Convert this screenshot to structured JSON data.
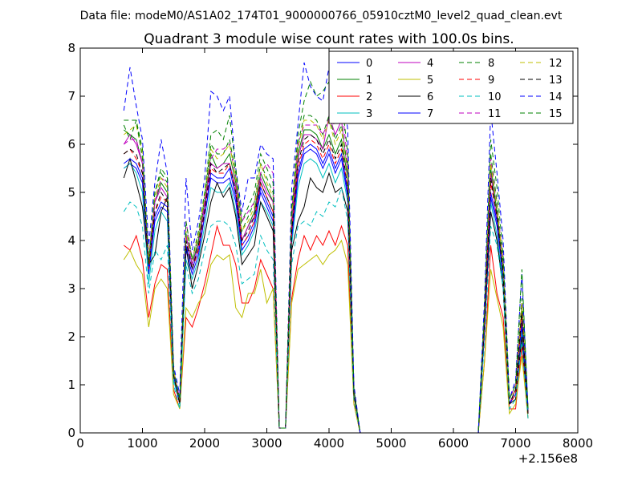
{
  "figure": {
    "suptitle": "Data file: modeM0/AS1A02_174T01_9000000766_05910cztM0_level2_quad_clean.evt"
  },
  "chart_data": {
    "type": "line",
    "title": "Quadrant 3 module wise count rates with 100.0s bins.",
    "xlabel": "",
    "ylabel": "",
    "xlim": [
      0,
      8000
    ],
    "ylim": [
      0,
      8
    ],
    "xticks": [
      0,
      1000,
      2000,
      3000,
      4000,
      5000,
      6000,
      7000,
      8000
    ],
    "xtick_labels": [
      "0",
      "1000",
      "2000",
      "3000",
      "4000",
      "5000",
      "6000",
      "7000",
      "8000"
    ],
    "yticks": [
      0,
      1,
      2,
      3,
      4,
      5,
      6,
      7,
      8
    ],
    "ytick_labels": [
      "0",
      "1",
      "2",
      "3",
      "4",
      "5",
      "6",
      "7",
      "8"
    ],
    "x_offset_label": "+2.156e8",
    "grid": false,
    "legend": {
      "placement": "top-right",
      "columns": 4
    },
    "x": [
      700,
      800,
      900,
      1000,
      1100,
      1200,
      1300,
      1400,
      1500,
      1600,
      1700,
      1800,
      1900,
      2000,
      2100,
      2200,
      2300,
      2400,
      2500,
      2600,
      2700,
      2800,
      2900,
      3000,
      3100,
      3200,
      3300,
      3400,
      3500,
      3600,
      3700,
      3800,
      3900,
      4000,
      4100,
      4200,
      4300,
      4400,
      4500,
      4600,
      4700,
      4800,
      4900,
      5000,
      5100,
      5200,
      5300,
      5400,
      5500,
      5600,
      5700,
      5800,
      5900,
      6000,
      6100,
      6200,
      6300,
      6400,
      6500,
      6600,
      6700,
      6800,
      6900,
      7000,
      7100,
      7200
    ],
    "series": [
      {
        "name": "0",
        "color": "#0000ff",
        "dash": "solid",
        "values": [
          5.5,
          5.6,
          5.5,
          5.2,
          3.3,
          4.4,
          4.7,
          4.6,
          1.2,
          0.6,
          3.8,
          3.3,
          3.7,
          4.5,
          5.3,
          5.2,
          5.2,
          5.3,
          4.8,
          3.8,
          4.0,
          4.3,
          5.0,
          4.7,
          4.4,
          0.1,
          0.1,
          4.0,
          5.3,
          5.8,
          5.9,
          5.8,
          5.5,
          5.8,
          5.4,
          5.7,
          4.9,
          0.8,
          0.0,
          0,
          0,
          0,
          0,
          0,
          0,
          0,
          0,
          0,
          0,
          0,
          0,
          0,
          0,
          0,
          0,
          0,
          0,
          0,
          2.2,
          4.9,
          4.3,
          3.2,
          0.6,
          0.8,
          2.2,
          0.4
        ]
      },
      {
        "name": "1",
        "color": "#008000",
        "dash": "solid",
        "values": [
          6.3,
          6.2,
          6.1,
          5.6,
          3.4,
          4.8,
          5.2,
          5.0,
          1.3,
          0.6,
          4.1,
          3.5,
          4.0,
          4.8,
          5.8,
          5.5,
          5.6,
          5.8,
          5.2,
          4.0,
          4.3,
          4.6,
          5.4,
          5.1,
          4.8,
          0.1,
          0.1,
          4.4,
          5.8,
          6.3,
          6.3,
          6.2,
          5.9,
          6.2,
          5.8,
          6.1,
          5.3,
          0.9,
          0.0,
          0,
          0,
          0,
          0,
          0,
          0,
          0,
          0,
          0,
          0,
          0,
          0,
          0,
          0,
          0,
          0,
          0,
          0,
          0,
          2.4,
          5.5,
          4.6,
          3.4,
          0.6,
          0.9,
          2.6,
          0.4
        ]
      },
      {
        "name": "2",
        "color": "#ff0000",
        "dash": "solid",
        "values": [
          3.9,
          3.8,
          4.1,
          3.6,
          2.4,
          3.1,
          3.5,
          3.4,
          0.9,
          0.5,
          2.4,
          2.2,
          2.6,
          3.1,
          3.7,
          4.3,
          3.9,
          3.9,
          3.5,
          2.7,
          2.7,
          3.0,
          3.6,
          3.3,
          3.0,
          0.1,
          0.1,
          2.8,
          3.6,
          4.1,
          3.8,
          4.1,
          3.9,
          4.2,
          3.9,
          4.3,
          3.9,
          0.6,
          0.0,
          0,
          0,
          0,
          0,
          0,
          0,
          0,
          0,
          0,
          0,
          0,
          0,
          0,
          0,
          0,
          0,
          0,
          0,
          0,
          1.5,
          3.9,
          2.9,
          2.4,
          0.5,
          0.5,
          1.8,
          0.3
        ]
      },
      {
        "name": "3",
        "color": "#00bfbf",
        "dash": "solid",
        "values": [
          5.5,
          5.6,
          5.4,
          5.0,
          3.1,
          4.2,
          4.6,
          4.4,
          1.1,
          0.6,
          3.6,
          3.2,
          3.6,
          4.3,
          5.1,
          5.0,
          5.0,
          5.2,
          4.6,
          3.7,
          3.9,
          4.2,
          4.8,
          4.6,
          4.3,
          0.1,
          0.1,
          3.9,
          5.1,
          5.6,
          5.7,
          5.6,
          5.3,
          5.6,
          5.2,
          5.5,
          4.8,
          0.8,
          0.0,
          0,
          0,
          0,
          0,
          0,
          0,
          0,
          0,
          0,
          0,
          0,
          0,
          0,
          0,
          0,
          0,
          0,
          0,
          0,
          2.1,
          4.8,
          4.1,
          3.1,
          0.6,
          0.8,
          2.1,
          0.4
        ]
      },
      {
        "name": "4",
        "color": "#bf00bf",
        "dash": "solid",
        "values": [
          6.0,
          6.2,
          6.0,
          5.6,
          3.4,
          4.8,
          5.1,
          4.9,
          1.3,
          0.7,
          4.1,
          3.5,
          3.9,
          4.7,
          5.6,
          5.5,
          5.6,
          5.6,
          5.1,
          4.0,
          4.3,
          4.5,
          5.3,
          5.0,
          4.8,
          0.1,
          0.1,
          4.3,
          5.7,
          6.2,
          6.2,
          6.1,
          5.9,
          6.6,
          6.2,
          6.5,
          5.4,
          0.9,
          0.0,
          0,
          0,
          0,
          0,
          0,
          0,
          0,
          0,
          0,
          0,
          0,
          0,
          0,
          0,
          0,
          0,
          0,
          0,
          0,
          2.3,
          5.4,
          4.4,
          3.3,
          0.6,
          0.9,
          2.4,
          0.4
        ]
      },
      {
        "name": "5",
        "color": "#bfbf00",
        "dash": "solid",
        "values": [
          3.6,
          3.8,
          3.5,
          3.3,
          2.2,
          3.0,
          3.2,
          3.0,
          0.8,
          0.5,
          2.6,
          2.4,
          2.7,
          2.9,
          3.5,
          3.7,
          3.6,
          3.7,
          2.6,
          2.4,
          2.9,
          2.9,
          3.4,
          2.7,
          3.0,
          0.1,
          0.1,
          2.7,
          3.4,
          3.5,
          3.6,
          3.7,
          3.5,
          3.7,
          3.8,
          4.0,
          3.5,
          0.6,
          0.0,
          0,
          0,
          0,
          0,
          0,
          0,
          0,
          0,
          0,
          0,
          0,
          0,
          0,
          0,
          0,
          0,
          0,
          0,
          0,
          1.5,
          3.4,
          2.8,
          2.2,
          0.4,
          0.6,
          1.6,
          0.3
        ]
      },
      {
        "name": "6",
        "color": "#000000",
        "dash": "solid",
        "values": [
          5.3,
          5.7,
          5.2,
          4.7,
          3.5,
          3.7,
          4.6,
          4.9,
          1.2,
          0.6,
          3.9,
          3.0,
          3.5,
          4.1,
          4.8,
          5.2,
          4.9,
          5.1,
          4.5,
          3.5,
          3.7,
          3.9,
          4.8,
          4.5,
          4.2,
          0.1,
          0.1,
          3.8,
          4.4,
          4.7,
          5.3,
          5.1,
          5.0,
          5.4,
          5.0,
          5.1,
          4.6,
          0.8,
          0.0,
          0,
          0,
          0,
          0,
          0,
          0,
          0,
          0,
          0,
          0,
          0,
          0,
          0,
          0,
          0,
          0,
          0,
          0,
          0,
          2.2,
          4.6,
          4.0,
          3.0,
          0.6,
          0.7,
          2.0,
          0.4
        ]
      },
      {
        "name": "7",
        "color": "#0000ff",
        "dash": "solid",
        "values": [
          5.6,
          5.7,
          5.6,
          5.3,
          3.4,
          4.5,
          4.8,
          4.7,
          1.2,
          0.6,
          3.9,
          3.4,
          3.8,
          4.5,
          5.4,
          5.3,
          5.3,
          5.5,
          4.9,
          3.9,
          4.1,
          4.4,
          5.1,
          4.8,
          4.5,
          0.1,
          0.1,
          4.1,
          5.4,
          5.9,
          6.0,
          5.9,
          5.6,
          5.9,
          5.5,
          5.8,
          5.0,
          0.8,
          0.0,
          0,
          0,
          0,
          0,
          0,
          0,
          0,
          0,
          0,
          0,
          0,
          0,
          0,
          0,
          0,
          0,
          0,
          0,
          0,
          2.2,
          5.0,
          4.4,
          3.3,
          0.6,
          0.8,
          2.3,
          0.4
        ]
      },
      {
        "name": "8",
        "color": "#008000",
        "dash": "dashed",
        "values": [
          6.5,
          6.5,
          6.5,
          5.9,
          3.6,
          5.0,
          5.4,
          5.2,
          1.3,
          0.7,
          4.2,
          3.6,
          4.1,
          4.9,
          6.0,
          5.8,
          5.8,
          6.1,
          5.4,
          4.2,
          4.5,
          4.8,
          5.6,
          5.3,
          5.0,
          0.1,
          0.1,
          4.6,
          6.0,
          6.6,
          6.6,
          6.5,
          6.2,
          6.6,
          6.1,
          6.4,
          5.5,
          0.9,
          0.0,
          0,
          0,
          0,
          0,
          0,
          0,
          0,
          0,
          0,
          0,
          0,
          0,
          0,
          0,
          0,
          0,
          0,
          0,
          0,
          2.5,
          5.8,
          4.8,
          3.5,
          0.7,
          1.0,
          2.8,
          0.5
        ]
      },
      {
        "name": "9",
        "color": "#ff0000",
        "dash": "dashed",
        "values": [
          5.8,
          5.9,
          5.7,
          5.4,
          3.4,
          4.6,
          4.9,
          4.8,
          1.2,
          0.6,
          4.0,
          3.4,
          3.8,
          4.6,
          5.5,
          5.4,
          5.4,
          5.6,
          5.0,
          3.9,
          4.1,
          4.4,
          5.2,
          4.9,
          4.6,
          0.1,
          0.1,
          4.2,
          5.5,
          6.0,
          6.1,
          6.0,
          5.7,
          6.0,
          5.6,
          5.9,
          5.1,
          0.8,
          0.0,
          0,
          0,
          0,
          0,
          0,
          0,
          0,
          0,
          0,
          0,
          0,
          0,
          0,
          0,
          0,
          0,
          0,
          0,
          0,
          2.3,
          5.2,
          4.5,
          3.3,
          0.6,
          0.8,
          2.4,
          0.4
        ]
      },
      {
        "name": "10",
        "color": "#00bfbf",
        "dash": "dashed",
        "values": [
          4.6,
          4.8,
          4.7,
          4.3,
          2.9,
          3.8,
          3.6,
          3.9,
          1.0,
          0.5,
          3.5,
          2.9,
          3.2,
          3.8,
          4.3,
          4.4,
          4.4,
          4.3,
          3.9,
          3.1,
          3.2,
          3.3,
          4.1,
          3.8,
          3.6,
          0.1,
          0.1,
          3.5,
          4.3,
          4.4,
          4.3,
          4.6,
          4.5,
          4.8,
          4.7,
          5.1,
          4.4,
          0.7,
          0.0,
          0,
          0,
          0,
          0,
          0,
          0,
          0,
          0,
          0,
          0,
          0,
          0,
          0,
          0,
          0,
          0,
          0,
          0,
          0,
          1.9,
          4.3,
          3.9,
          3.0,
          0.5,
          0.7,
          1.9,
          0.3
        ]
      },
      {
        "name": "11",
        "color": "#bf00bf",
        "dash": "dashed",
        "values": [
          6.0,
          6.1,
          6.1,
          5.6,
          3.7,
          4.8,
          5.3,
          5.2,
          1.3,
          0.7,
          4.4,
          3.6,
          4.1,
          4.8,
          5.7,
          5.9,
          5.9,
          6.0,
          5.3,
          4.4,
          4.6,
          4.8,
          5.4,
          5.6,
          5.4,
          0.1,
          0.1,
          4.6,
          6.0,
          6.4,
          6.4,
          6.4,
          6.2,
          6.5,
          6.4,
          6.9,
          5.6,
          0.9,
          0.0,
          0,
          0,
          0,
          0,
          0,
          0,
          0,
          0,
          0,
          0,
          0,
          0,
          0,
          0,
          0,
          0,
          0,
          0,
          0,
          2.5,
          5.7,
          4.7,
          3.6,
          0.7,
          1.0,
          2.7,
          0.5
        ]
      },
      {
        "name": "12",
        "color": "#bfbf00",
        "dash": "dashed",
        "values": [
          6.2,
          6.3,
          6.4,
          5.8,
          3.6,
          4.9,
          5.3,
          5.1,
          1.3,
          0.6,
          4.2,
          3.6,
          4.1,
          4.9,
          5.9,
          5.7,
          5.8,
          6.0,
          5.3,
          4.2,
          4.4,
          4.7,
          5.6,
          5.2,
          4.9,
          0.1,
          0.1,
          4.5,
          5.9,
          6.5,
          6.5,
          6.4,
          6.1,
          6.5,
          6.0,
          6.3,
          5.4,
          0.9,
          0.0,
          0,
          0,
          0,
          0,
          0,
          0,
          0,
          0,
          0,
          0,
          0,
          0,
          0,
          0,
          0,
          0,
          0,
          0,
          0,
          2.4,
          5.6,
          4.7,
          3.5,
          0.7,
          0.9,
          2.7,
          0.5
        ]
      },
      {
        "name": "13",
        "color": "#000000",
        "dash": "dashed",
        "values": [
          5.8,
          5.9,
          5.8,
          5.4,
          3.5,
          4.6,
          5.0,
          4.8,
          1.2,
          0.6,
          4.0,
          3.4,
          3.9,
          4.6,
          5.6,
          5.4,
          5.5,
          5.6,
          5.0,
          4.0,
          4.2,
          4.5,
          5.2,
          4.9,
          4.6,
          0.1,
          0.1,
          4.2,
          5.6,
          6.1,
          6.2,
          6.1,
          5.8,
          6.1,
          5.7,
          6.0,
          5.1,
          0.8,
          0.0,
          0,
          0,
          0,
          0,
          0,
          0,
          0,
          0,
          0,
          0,
          0,
          0,
          0,
          0,
          0,
          0,
          0,
          0,
          0,
          2.3,
          5.3,
          4.5,
          3.3,
          0.6,
          0.9,
          2.5,
          0.4
        ]
      },
      {
        "name": "14",
        "color": "#0000ff",
        "dash": "dashed",
        "values": [
          6.7,
          7.6,
          6.8,
          6.1,
          3.9,
          5.2,
          6.1,
          5.4,
          1.4,
          0.8,
          5.3,
          3.8,
          4.4,
          5.3,
          7.1,
          7.0,
          6.7,
          7.0,
          5.5,
          4.6,
          5.3,
          5.3,
          6.0,
          5.8,
          5.7,
          0.1,
          0.1,
          5.1,
          6.4,
          7.7,
          7.2,
          7.0,
          6.9,
          7.6,
          7.3,
          7.5,
          6.3,
          1.0,
          0.0,
          0,
          0,
          0,
          0,
          0,
          0,
          0,
          0,
          0,
          0,
          0,
          0,
          0,
          0,
          0,
          0,
          0,
          0,
          0,
          2.8,
          6.7,
          5.4,
          4.0,
          0.7,
          1.1,
          3.3,
          0.5
        ]
      },
      {
        "name": "15",
        "color": "#008000",
        "dash": "dashed",
        "values": [
          6.4,
          6.1,
          6.5,
          5.7,
          3.5,
          5.0,
          5.5,
          5.3,
          1.3,
          0.7,
          4.4,
          3.6,
          4.2,
          5.0,
          6.2,
          6.3,
          6.1,
          6.6,
          5.5,
          4.4,
          4.7,
          5.0,
          5.8,
          5.5,
          5.2,
          0.1,
          0.1,
          4.7,
          6.2,
          6.9,
          7.3,
          7.0,
          7.1,
          7.3,
          6.8,
          7.0,
          5.8,
          0.9,
          0.0,
          0,
          0,
          0,
          0,
          0,
          0,
          0,
          0,
          0,
          0,
          0,
          0,
          0,
          0,
          0,
          0,
          0,
          0,
          0,
          2.6,
          6.1,
          5.1,
          3.7,
          0.7,
          1.0,
          3.4,
          0.5
        ]
      }
    ]
  }
}
